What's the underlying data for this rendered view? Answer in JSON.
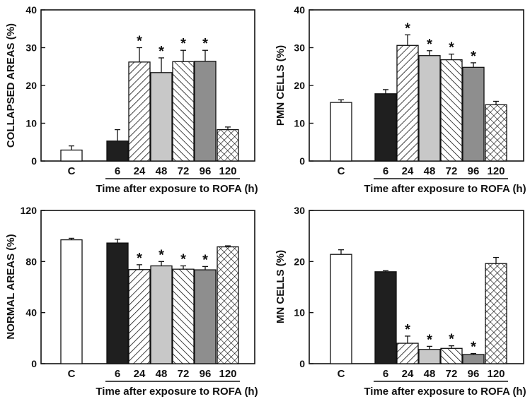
{
  "chart_data": [
    {
      "type": "bar",
      "panel": "top-left",
      "title": "",
      "ylabel": "COLLAPSED AREAS (%)",
      "xlabel": "Time after exposure to ROFA (h)",
      "ylim": [
        0,
        40
      ],
      "yticks": [
        "0",
        "10",
        "20",
        "30",
        "40"
      ],
      "categories": [
        "C",
        "6",
        "24",
        "48",
        "72",
        "96",
        "120"
      ],
      "values": [
        2.9,
        5.3,
        26.2,
        23.4,
        26.3,
        26.4,
        8.3
      ],
      "errors": [
        1.1,
        3.0,
        3.8,
        3.9,
        3.0,
        2.9,
        0.7
      ],
      "significant": [
        "",
        "",
        "*",
        "*",
        "*",
        "*",
        ""
      ],
      "patterns": [
        "white",
        "black",
        "diag-right",
        "light-gray",
        "diag-left",
        "dark-gray",
        "crosshatch"
      ]
    },
    {
      "type": "bar",
      "panel": "top-right",
      "title": "",
      "ylabel": "PMN CELLS (%)",
      "xlabel": "Time after exposure to ROFA (h)",
      "ylim": [
        0,
        40
      ],
      "yticks": [
        "0",
        "10",
        "20",
        "30",
        "40"
      ],
      "categories": [
        "C",
        "6",
        "24",
        "48",
        "72",
        "96",
        "120"
      ],
      "values": [
        15.5,
        17.8,
        30.6,
        27.9,
        26.8,
        24.8,
        14.9
      ],
      "errors": [
        0.7,
        1.1,
        2.8,
        1.3,
        1.5,
        1.2,
        0.9
      ],
      "significant": [
        "",
        "",
        "*",
        "*",
        "*",
        "*",
        ""
      ],
      "patterns": [
        "white",
        "black",
        "diag-right",
        "light-gray",
        "diag-left",
        "dark-gray",
        "crosshatch"
      ]
    },
    {
      "type": "bar",
      "panel": "bottom-left",
      "title": "",
      "ylabel": "NORMAL AREAS (%)",
      "xlabel": "Time after exposure to ROFA (h)",
      "ylim": [
        0,
        120
      ],
      "yticks": [
        "0",
        "40",
        "80",
        "120"
      ],
      "categories": [
        "C",
        "6",
        "24",
        "48",
        "72",
        "96",
        "120"
      ],
      "values": [
        97,
        94.5,
        73.7,
        76.6,
        74.0,
        73.5,
        91.5
      ],
      "errors": [
        1.2,
        3.0,
        3.8,
        3.4,
        2.6,
        2.6,
        0.8
      ],
      "significant": [
        "",
        "",
        "*",
        "*",
        "*",
        "*",
        ""
      ],
      "patterns": [
        "white",
        "black",
        "diag-right",
        "light-gray",
        "diag-left",
        "dark-gray",
        "crosshatch"
      ]
    },
    {
      "type": "bar",
      "panel": "bottom-right",
      "title": "",
      "ylabel": "MN CELLS (%)",
      "xlabel": "Time after exposure to ROFA (h)",
      "ylim": [
        0,
        30
      ],
      "yticks": [
        "0",
        "10",
        "20",
        "30"
      ],
      "categories": [
        "C",
        "6",
        "24",
        "48",
        "72",
        "96",
        "120"
      ],
      "values": [
        21.4,
        18.0,
        4.0,
        2.8,
        3.0,
        1.8,
        19.6
      ],
      "errors": [
        0.9,
        0.2,
        1.4,
        0.6,
        0.5,
        0.2,
        1.2
      ],
      "significant": [
        "",
        "",
        "*",
        "*",
        "*",
        "*",
        ""
      ],
      "patterns": [
        "white",
        "black",
        "diag-right",
        "light-gray",
        "diag-left",
        "dark-gray",
        "crosshatch"
      ]
    }
  ],
  "colors": {
    "axis": "#111111",
    "black_bar": "#1f1f1f",
    "light_gray_bar": "#c8c8c8",
    "dark_gray_bar": "#8e8e8e",
    "white_bar": "#ffffff"
  }
}
